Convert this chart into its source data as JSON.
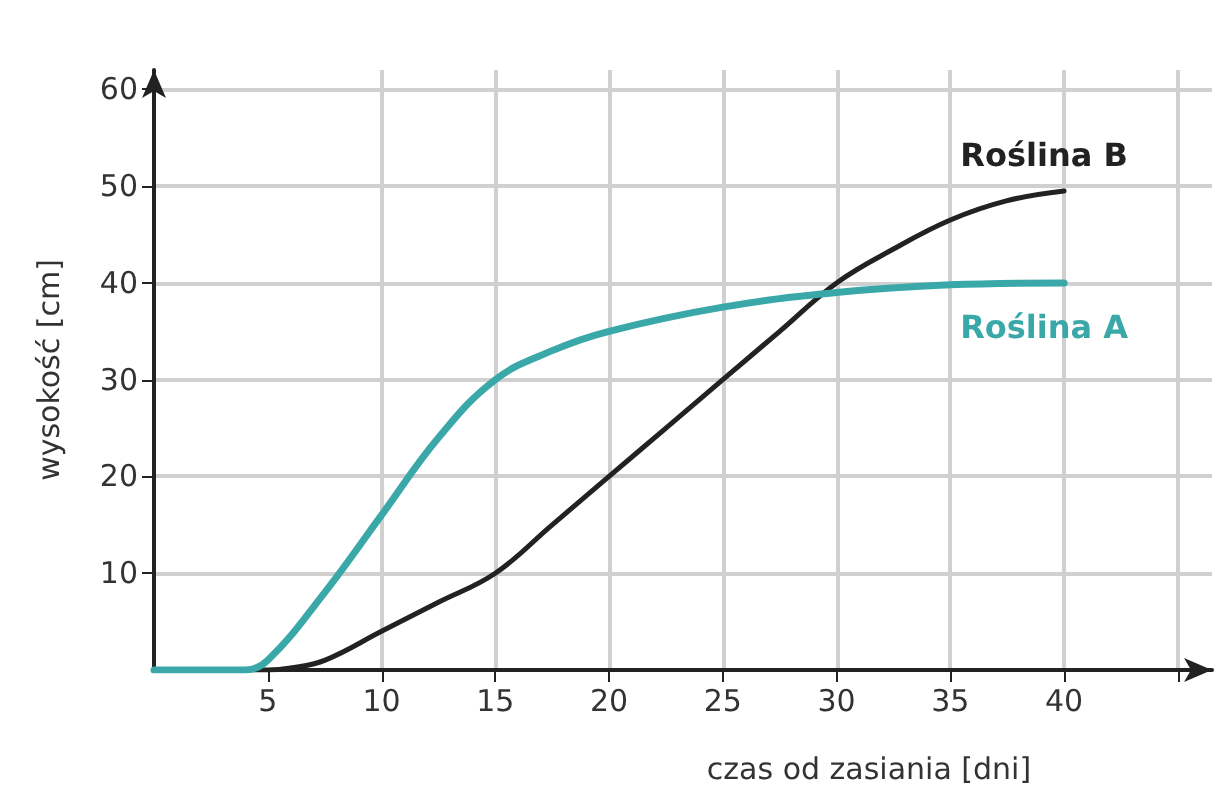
{
  "chart_data": {
    "type": "line",
    "xlabel": "czas od zasiania [dni]",
    "ylabel": "wysokość [cm]",
    "xlim": [
      0,
      46.5
    ],
    "xticks": [
      5,
      10,
      15,
      20,
      25,
      30,
      35,
      40,
      {
        "value": 45,
        "label": null
      }
    ],
    "ylim": [
      0,
      62
    ],
    "yticks": [
      10,
      20,
      30,
      40,
      50,
      60
    ],
    "grid": true,
    "legend": false,
    "marker": "none",
    "line_style": "solid",
    "series": [
      {
        "name": "Roślina A",
        "color": "#3aa8a8",
        "x": [
          0,
          4,
          5,
          7.5,
          10,
          12.5,
          15,
          17.5,
          20,
          25,
          30,
          35,
          40
        ],
        "values": [
          0,
          0,
          1,
          8,
          16,
          24,
          30,
          33,
          35,
          37.5,
          39,
          39.8,
          40
        ]
      },
      {
        "name": "Roślina B",
        "color": "#222222",
        "x": [
          0,
          5,
          6,
          7.5,
          10,
          12.5,
          15,
          17.5,
          20,
          22.5,
          25,
          27.5,
          30,
          32.5,
          35,
          37.5,
          40
        ],
        "values": [
          0,
          0,
          0.2,
          1,
          4,
          7,
          10,
          15,
          20,
          25,
          30,
          35,
          40,
          43.5,
          46.5,
          48.5,
          49.5
        ]
      }
    ]
  }
}
